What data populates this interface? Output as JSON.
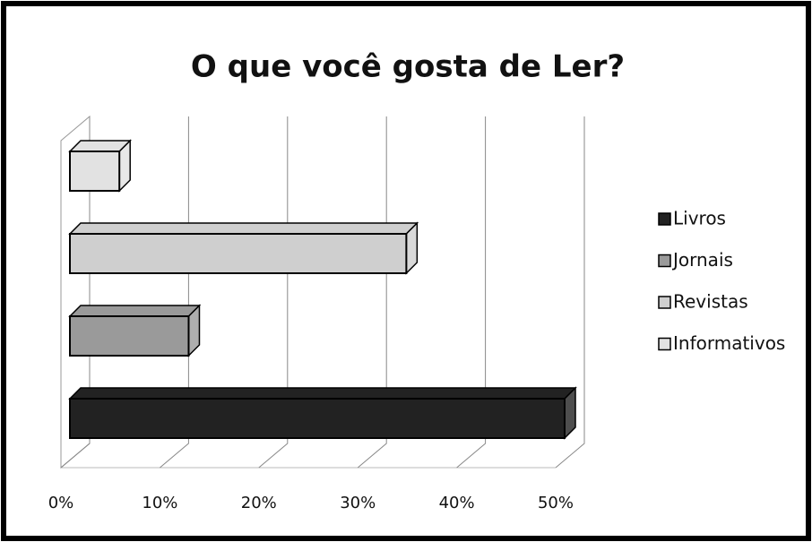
{
  "chart_data": {
    "type": "bar3d",
    "orientation": "horizontal",
    "title": "O que você gosta de Ler?",
    "series": [
      {
        "name": "Livros",
        "color": "#222222",
        "values": [
          50
        ]
      },
      {
        "name": "Jornais",
        "color": "#9a9a9a",
        "values": [
          12
        ]
      },
      {
        "name": "Revistas",
        "color": "#cfcfcf",
        "values": [
          34
        ]
      },
      {
        "name": "Informativos",
        "color": "#e2e2e2",
        "values": [
          5
        ]
      }
    ],
    "xlim": [
      0,
      50
    ],
    "xticks": [
      {
        "value": 0,
        "label": "0%"
      },
      {
        "value": 10,
        "label": "10%"
      },
      {
        "value": 20,
        "label": "20%"
      },
      {
        "value": 30,
        "label": "30%"
      },
      {
        "value": 40,
        "label": "40%"
      },
      {
        "value": 50,
        "label": "50%"
      }
    ],
    "grid": true,
    "legend": "right"
  }
}
